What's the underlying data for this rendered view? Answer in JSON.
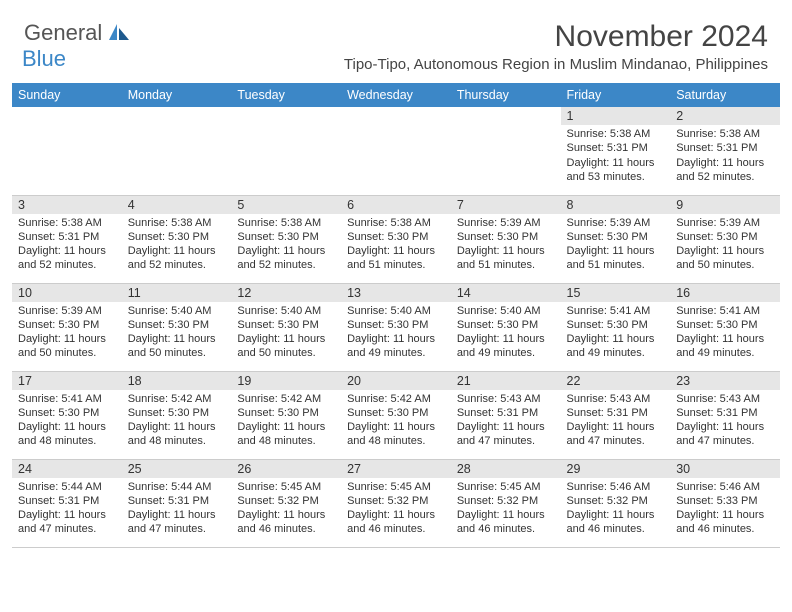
{
  "logo": {
    "general": "General",
    "blue": "Blue"
  },
  "title": "November 2024",
  "location": "Tipo-Tipo, Autonomous Region in Muslim Mindanao, Philippines",
  "colors": {
    "header_bg": "#3c87c7",
    "header_text": "#ffffff",
    "daynum_bg": "#e6e6e6",
    "text": "#333333",
    "logo_gray": "#555555",
    "logo_blue": "#3c87c7"
  },
  "weekdays": [
    "Sunday",
    "Monday",
    "Tuesday",
    "Wednesday",
    "Thursday",
    "Friday",
    "Saturday"
  ],
  "weeks": [
    [
      {
        "n": "",
        "sr": "",
        "ss": "",
        "dl": ""
      },
      {
        "n": "",
        "sr": "",
        "ss": "",
        "dl": ""
      },
      {
        "n": "",
        "sr": "",
        "ss": "",
        "dl": ""
      },
      {
        "n": "",
        "sr": "",
        "ss": "",
        "dl": ""
      },
      {
        "n": "",
        "sr": "",
        "ss": "",
        "dl": ""
      },
      {
        "n": "1",
        "sr": "Sunrise: 5:38 AM",
        "ss": "Sunset: 5:31 PM",
        "dl": "Daylight: 11 hours and 53 minutes."
      },
      {
        "n": "2",
        "sr": "Sunrise: 5:38 AM",
        "ss": "Sunset: 5:31 PM",
        "dl": "Daylight: 11 hours and 52 minutes."
      }
    ],
    [
      {
        "n": "3",
        "sr": "Sunrise: 5:38 AM",
        "ss": "Sunset: 5:31 PM",
        "dl": "Daylight: 11 hours and 52 minutes."
      },
      {
        "n": "4",
        "sr": "Sunrise: 5:38 AM",
        "ss": "Sunset: 5:30 PM",
        "dl": "Daylight: 11 hours and 52 minutes."
      },
      {
        "n": "5",
        "sr": "Sunrise: 5:38 AM",
        "ss": "Sunset: 5:30 PM",
        "dl": "Daylight: 11 hours and 52 minutes."
      },
      {
        "n": "6",
        "sr": "Sunrise: 5:38 AM",
        "ss": "Sunset: 5:30 PM",
        "dl": "Daylight: 11 hours and 51 minutes."
      },
      {
        "n": "7",
        "sr": "Sunrise: 5:39 AM",
        "ss": "Sunset: 5:30 PM",
        "dl": "Daylight: 11 hours and 51 minutes."
      },
      {
        "n": "8",
        "sr": "Sunrise: 5:39 AM",
        "ss": "Sunset: 5:30 PM",
        "dl": "Daylight: 11 hours and 51 minutes."
      },
      {
        "n": "9",
        "sr": "Sunrise: 5:39 AM",
        "ss": "Sunset: 5:30 PM",
        "dl": "Daylight: 11 hours and 50 minutes."
      }
    ],
    [
      {
        "n": "10",
        "sr": "Sunrise: 5:39 AM",
        "ss": "Sunset: 5:30 PM",
        "dl": "Daylight: 11 hours and 50 minutes."
      },
      {
        "n": "11",
        "sr": "Sunrise: 5:40 AM",
        "ss": "Sunset: 5:30 PM",
        "dl": "Daylight: 11 hours and 50 minutes."
      },
      {
        "n": "12",
        "sr": "Sunrise: 5:40 AM",
        "ss": "Sunset: 5:30 PM",
        "dl": "Daylight: 11 hours and 50 minutes."
      },
      {
        "n": "13",
        "sr": "Sunrise: 5:40 AM",
        "ss": "Sunset: 5:30 PM",
        "dl": "Daylight: 11 hours and 49 minutes."
      },
      {
        "n": "14",
        "sr": "Sunrise: 5:40 AM",
        "ss": "Sunset: 5:30 PM",
        "dl": "Daylight: 11 hours and 49 minutes."
      },
      {
        "n": "15",
        "sr": "Sunrise: 5:41 AM",
        "ss": "Sunset: 5:30 PM",
        "dl": "Daylight: 11 hours and 49 minutes."
      },
      {
        "n": "16",
        "sr": "Sunrise: 5:41 AM",
        "ss": "Sunset: 5:30 PM",
        "dl": "Daylight: 11 hours and 49 minutes."
      }
    ],
    [
      {
        "n": "17",
        "sr": "Sunrise: 5:41 AM",
        "ss": "Sunset: 5:30 PM",
        "dl": "Daylight: 11 hours and 48 minutes."
      },
      {
        "n": "18",
        "sr": "Sunrise: 5:42 AM",
        "ss": "Sunset: 5:30 PM",
        "dl": "Daylight: 11 hours and 48 minutes."
      },
      {
        "n": "19",
        "sr": "Sunrise: 5:42 AM",
        "ss": "Sunset: 5:30 PM",
        "dl": "Daylight: 11 hours and 48 minutes."
      },
      {
        "n": "20",
        "sr": "Sunrise: 5:42 AM",
        "ss": "Sunset: 5:30 PM",
        "dl": "Daylight: 11 hours and 48 minutes."
      },
      {
        "n": "21",
        "sr": "Sunrise: 5:43 AM",
        "ss": "Sunset: 5:31 PM",
        "dl": "Daylight: 11 hours and 47 minutes."
      },
      {
        "n": "22",
        "sr": "Sunrise: 5:43 AM",
        "ss": "Sunset: 5:31 PM",
        "dl": "Daylight: 11 hours and 47 minutes."
      },
      {
        "n": "23",
        "sr": "Sunrise: 5:43 AM",
        "ss": "Sunset: 5:31 PM",
        "dl": "Daylight: 11 hours and 47 minutes."
      }
    ],
    [
      {
        "n": "24",
        "sr": "Sunrise: 5:44 AM",
        "ss": "Sunset: 5:31 PM",
        "dl": "Daylight: 11 hours and 47 minutes."
      },
      {
        "n": "25",
        "sr": "Sunrise: 5:44 AM",
        "ss": "Sunset: 5:31 PM",
        "dl": "Daylight: 11 hours and 47 minutes."
      },
      {
        "n": "26",
        "sr": "Sunrise: 5:45 AM",
        "ss": "Sunset: 5:32 PM",
        "dl": "Daylight: 11 hours and 46 minutes."
      },
      {
        "n": "27",
        "sr": "Sunrise: 5:45 AM",
        "ss": "Sunset: 5:32 PM",
        "dl": "Daylight: 11 hours and 46 minutes."
      },
      {
        "n": "28",
        "sr": "Sunrise: 5:45 AM",
        "ss": "Sunset: 5:32 PM",
        "dl": "Daylight: 11 hours and 46 minutes."
      },
      {
        "n": "29",
        "sr": "Sunrise: 5:46 AM",
        "ss": "Sunset: 5:32 PM",
        "dl": "Daylight: 11 hours and 46 minutes."
      },
      {
        "n": "30",
        "sr": "Sunrise: 5:46 AM",
        "ss": "Sunset: 5:33 PM",
        "dl": "Daylight: 11 hours and 46 minutes."
      }
    ]
  ]
}
